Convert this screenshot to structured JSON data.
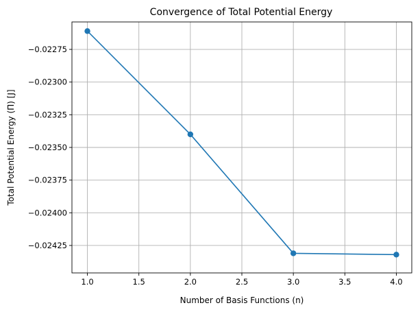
{
  "chart_data": {
    "type": "line",
    "title": "Convergence of Total Potential Energy",
    "xlabel": "Number of Basis Functions (n)",
    "ylabel": "Total Potential Energy (Π) [J]",
    "x": [
      1,
      2,
      3,
      4
    ],
    "series": [
      {
        "name": "Total Potential Energy",
        "values": [
          -0.02261,
          -0.0234,
          -0.02431,
          -0.02432
        ],
        "color": "#1f77b4",
        "marker": "circle"
      }
    ],
    "xlim": [
      0.85,
      4.15
    ],
    "ylim": [
      -0.02446,
      -0.02254
    ],
    "xticks": [
      1.0,
      1.5,
      2.0,
      2.5,
      3.0,
      3.5,
      4.0
    ],
    "xtick_labels": [
      "1.0",
      "1.5",
      "2.0",
      "2.5",
      "3.0",
      "3.5",
      "4.0"
    ],
    "yticks": [
      -0.02275,
      -0.023,
      -0.02325,
      -0.0235,
      -0.02375,
      -0.024,
      -0.02425
    ],
    "ytick_labels": [
      "−0.02275",
      "−0.02300",
      "−0.02325",
      "−0.02350",
      "−0.02375",
      "−0.02400",
      "−0.02425"
    ],
    "grid": true
  }
}
